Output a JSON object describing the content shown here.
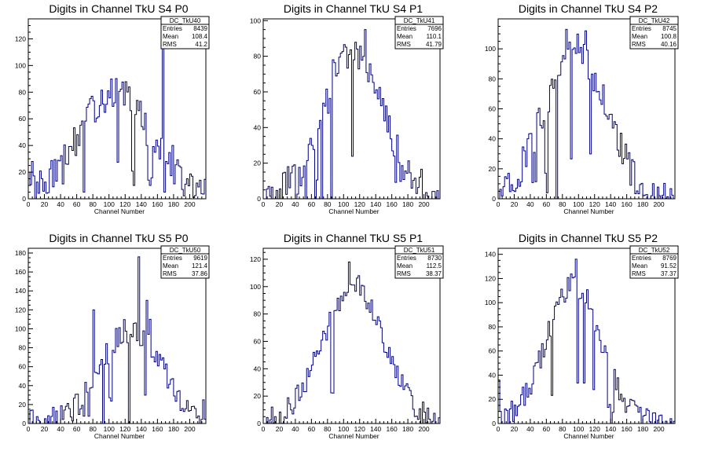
{
  "chart_data": [
    {
      "type": "histogram",
      "title": "Digits in Channel TkU S4 P0",
      "xlabel": "Channel Number",
      "ylabel": "",
      "xlim": [
        0,
        220
      ],
      "ylim": [
        0,
        135
      ],
      "xticks": [
        0,
        20,
        40,
        60,
        80,
        100,
        120,
        140,
        160,
        180,
        200
      ],
      "yticks": [
        0,
        20,
        40,
        60,
        80,
        100,
        120
      ],
      "stats": {
        "name": "DC_TkU40",
        "entries_label": "Entries",
        "entries": "8439",
        "mean_label": "Mean",
        "mean": "108.4",
        "rms_label": "RMS",
        "rms": "41.2"
      },
      "peak_x": 108,
      "peak_y": 80,
      "width": 45,
      "noise": 12,
      "spikes": [
        [
          0,
          20
        ],
        [
          4,
          28
        ],
        [
          130,
          10
        ],
        [
          146,
          40
        ],
        [
          150,
          10
        ],
        [
          166,
          125
        ],
        [
          168,
          5
        ],
        [
          178,
          40
        ],
        [
          68,
          5
        ],
        [
          88,
          70
        ]
      ]
    },
    {
      "type": "histogram",
      "title": "Digits in Channel TkU S4 P1",
      "xlabel": "Channel Number",
      "ylabel": "",
      "xlim": [
        0,
        220
      ],
      "ylim": [
        0,
        101
      ],
      "xticks": [
        0,
        20,
        40,
        60,
        80,
        100,
        120,
        140,
        160,
        180,
        200
      ],
      "yticks": [
        0,
        20,
        40,
        60,
        80,
        100
      ],
      "stats": {
        "name": "DC_TkU41",
        "entries_label": "Entries",
        "entries": "7696",
        "mean_label": "Mean",
        "mean": "110.1",
        "rms_label": "RMS",
        "rms": "41.79"
      },
      "peak_x": 112,
      "peak_y": 82,
      "width": 38,
      "noise": 10,
      "spikes": [
        [
          84,
          0
        ],
        [
          86,
          78
        ],
        [
          52,
          0
        ],
        [
          64,
          0
        ],
        [
          72,
          0
        ],
        [
          70,
          44
        ],
        [
          76,
          52
        ],
        [
          80,
          48
        ],
        [
          127,
          95
        ],
        [
          40,
          0
        ]
      ]
    },
    {
      "type": "histogram",
      "title": "Digits in Channel TkU S4 P2",
      "xlabel": "Channel Number",
      "ylabel": "",
      "xlim": [
        0,
        220
      ],
      "ylim": [
        0,
        120
      ],
      "xticks": [
        0,
        20,
        40,
        60,
        80,
        100,
        120,
        140,
        160,
        180,
        200
      ],
      "yticks": [
        0,
        20,
        40,
        60,
        80,
        100
      ],
      "stats": {
        "name": "DC_TkU42",
        "entries_label": "Entries",
        "entries": "8745",
        "mean_label": "Mean",
        "mean": "100.8",
        "rms_label": "RMS",
        "rms": "40.16"
      },
      "peak_x": 96,
      "peak_y": 100,
      "width": 38,
      "noise": 12,
      "spikes": [
        [
          72,
          0
        ],
        [
          84,
          113
        ],
        [
          108,
          112
        ],
        [
          180,
          2
        ],
        [
          190,
          2
        ],
        [
          200,
          2
        ],
        [
          60,
          4
        ]
      ]
    },
    {
      "type": "histogram",
      "title": "Digits in Channel TkU S5 P0",
      "xlabel": "Channel Number",
      "ylabel": "",
      "xlim": [
        0,
        220
      ],
      "ylim": [
        0,
        185
      ],
      "xticks": [
        0,
        20,
        40,
        60,
        80,
        100,
        120,
        140,
        160,
        180,
        200
      ],
      "yticks": [
        0,
        20,
        40,
        60,
        80,
        100,
        120,
        140,
        160,
        180
      ],
      "stats": {
        "name": "DC_TkU50",
        "entries_label": "Entries",
        "entries": "9619",
        "mean_label": "Mean",
        "mean": "121.4",
        "rms_label": "RMS",
        "rms": "37.86"
      },
      "peak_x": 128,
      "peak_y": 100,
      "width": 38,
      "noise": 14,
      "spikes": [
        [
          136,
          176
        ],
        [
          124,
          0
        ],
        [
          146,
          130
        ],
        [
          150,
          110
        ],
        [
          80,
          120
        ],
        [
          92,
          0
        ],
        [
          216,
          25
        ]
      ]
    },
    {
      "type": "histogram",
      "title": "Digits in Channel TkU S5 P1",
      "xlabel": "Channel Number",
      "ylabel": "",
      "xlim": [
        0,
        220
      ],
      "ylim": [
        0,
        128
      ],
      "xticks": [
        0,
        20,
        40,
        60,
        80,
        100,
        120,
        140,
        160,
        180,
        200
      ],
      "yticks": [
        0,
        20,
        40,
        60,
        80,
        100,
        120
      ],
      "stats": {
        "name": "DC_TkU51",
        "entries_label": "Entries",
        "entries": "8730",
        "mean_label": "Mean",
        "mean": "112.5",
        "rms_label": "RMS",
        "rms": "38.37"
      },
      "peak_x": 112,
      "peak_y": 100,
      "width": 38,
      "noise": 9,
      "spikes": [
        [
          106,
          118
        ],
        [
          118,
          108
        ],
        [
          10,
          12
        ]
      ]
    },
    {
      "type": "histogram",
      "title": "Digits in Channel TkU S5 P2",
      "xlabel": "Channel Number",
      "ylabel": "",
      "xlim": [
        0,
        220
      ],
      "ylim": [
        0,
        145
      ],
      "xticks": [
        0,
        20,
        40,
        60,
        80,
        100,
        120,
        140,
        160,
        180,
        200
      ],
      "yticks": [
        0,
        20,
        40,
        60,
        80,
        100,
        120,
        140
      ],
      "stats": {
        "name": "DC_TkU52",
        "entries_label": "Entries",
        "entries": "8769",
        "mean_label": "Mean",
        "mean": "91.52",
        "rms_label": "RMS",
        "rms": "37.37"
      },
      "peak_x": 94,
      "peak_y": 115,
      "width": 34,
      "noise": 10,
      "spikes": [
        [
          96,
          136
        ],
        [
          140,
          0
        ],
        [
          0,
          36
        ],
        [
          2,
          10
        ]
      ]
    }
  ],
  "colors": {
    "line": "#000080",
    "axis": "#000000",
    "background": "#ffffff"
  }
}
